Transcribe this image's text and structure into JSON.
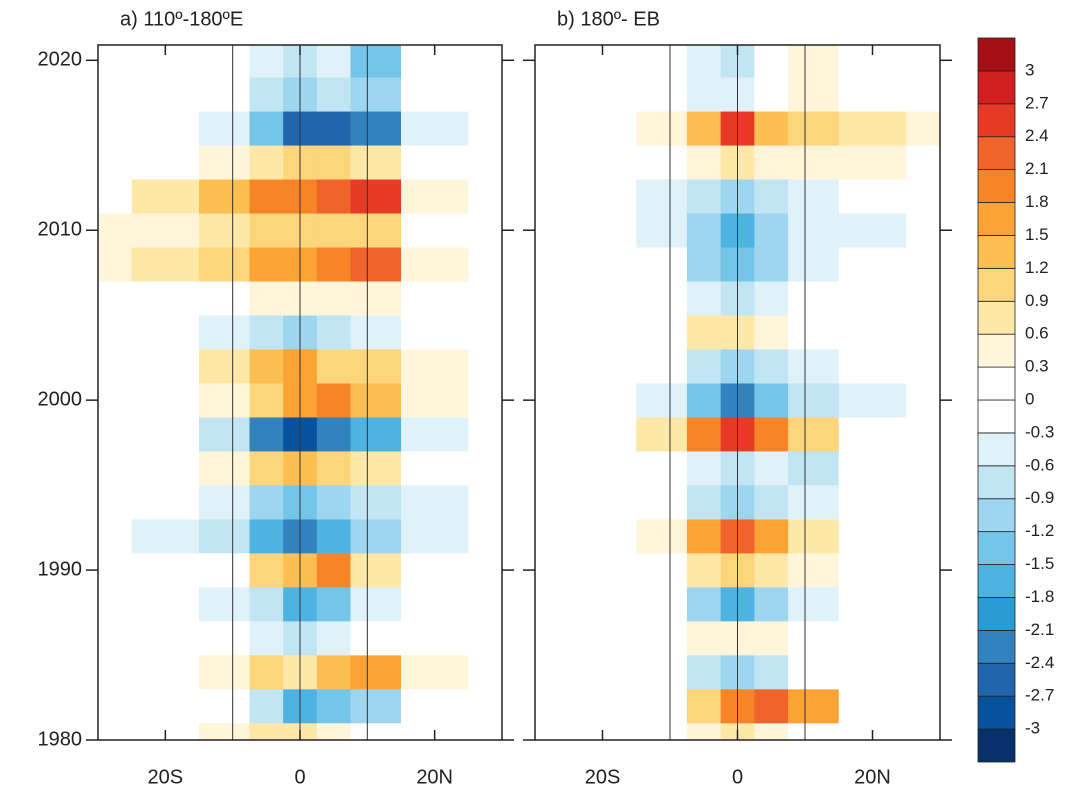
{
  "chart_data": {
    "type": "heatmap",
    "x": [
      -30,
      -20,
      -10,
      -5,
      0,
      5,
      10,
      20,
      30
    ],
    "y": [
      1980,
      1982,
      1984,
      1986,
      1988,
      1990,
      1992,
      1994,
      1996,
      1998,
      2000,
      2002,
      2004,
      2006,
      2008,
      2010,
      2012,
      2014,
      2016,
      2018,
      2020
    ],
    "xlim": [
      -30,
      30
    ],
    "ylim": [
      1980,
      2020.9
    ],
    "xticks": [
      {
        "value": -20,
        "label": "20S"
      },
      0,
      {
        "value": 20,
        "label": "20N"
      }
    ],
    "yticks": [
      1980,
      1990,
      2000,
      2010,
      2020
    ],
    "vlines": [
      -10,
      0,
      10
    ],
    "panels": [
      {
        "title": "a) 110º-180ºE",
        "z": [
          [
            0,
            0,
            0.3,
            0.6,
            0.6,
            0.3,
            0,
            0,
            0
          ],
          [
            0,
            0,
            0,
            -0.6,
            -1.5,
            -1.2,
            -0.9,
            0,
            0
          ],
          [
            0,
            0,
            0.3,
            0.9,
            0.6,
            1.2,
            1.5,
            0.3,
            0
          ],
          [
            0,
            0,
            0,
            -0.3,
            -0.6,
            -0.3,
            0,
            0,
            0
          ],
          [
            0,
            0,
            -0.3,
            -0.6,
            -1.5,
            -1.2,
            -0.3,
            0,
            0
          ],
          [
            0,
            0,
            0,
            0.9,
            1.2,
            1.8,
            0.6,
            0,
            0
          ],
          [
            0,
            -0.3,
            -0.6,
            -1.5,
            -2.1,
            -1.5,
            -0.9,
            -0.3,
            0
          ],
          [
            0,
            0,
            -0.3,
            -0.9,
            -1.2,
            -0.9,
            -0.6,
            -0.3,
            0
          ],
          [
            0,
            0,
            0.3,
            0.9,
            1.2,
            0.9,
            0.6,
            0,
            0
          ],
          [
            0,
            0,
            -0.6,
            -2.1,
            -2.7,
            -2.1,
            -1.5,
            -0.3,
            0
          ],
          [
            0,
            0,
            0.3,
            0.9,
            1.5,
            1.8,
            1.2,
            0.3,
            0
          ],
          [
            0,
            0,
            0.6,
            1.2,
            1.5,
            0.9,
            0.9,
            0.3,
            0
          ],
          [
            0,
            0,
            -0.3,
            -0.6,
            -0.9,
            -0.6,
            -0.3,
            0,
            0
          ],
          [
            0,
            0,
            0,
            0.3,
            0.3,
            0.3,
            0.3,
            0,
            0
          ],
          [
            0.3,
            0.6,
            0.9,
            1.5,
            1.5,
            1.8,
            2.1,
            0.3,
            0
          ],
          [
            0.3,
            0.3,
            0.6,
            0.9,
            0.9,
            0.9,
            0.9,
            0,
            0
          ],
          [
            0,
            0.6,
            1.2,
            1.8,
            1.8,
            2.1,
            2.4,
            0.3,
            0
          ],
          [
            0,
            0,
            0.3,
            0.6,
            0.9,
            0.9,
            0.6,
            0,
            0
          ],
          [
            0,
            0,
            -0.3,
            -1.2,
            -2.4,
            -2.4,
            -2.1,
            -0.3,
            0
          ],
          [
            0,
            0,
            0,
            -0.6,
            -0.9,
            -0.6,
            -0.9,
            0,
            0
          ],
          [
            0,
            0,
            0,
            -0.3,
            -0.6,
            -0.3,
            -1.2,
            0,
            0
          ]
        ]
      },
      {
        "title": "b) 180º- EB",
        "z": [
          [
            0,
            0,
            0,
            0.3,
            0.6,
            0.3,
            0,
            0,
            0
          ],
          [
            0,
            0,
            0,
            0.9,
            1.8,
            2.1,
            1.5,
            0,
            0
          ],
          [
            0,
            0,
            0,
            -0.6,
            -0.9,
            -0.6,
            0,
            0,
            0
          ],
          [
            0,
            0,
            0,
            0.3,
            0.3,
            0.3,
            0,
            0,
            0
          ],
          [
            0,
            0,
            0,
            -0.9,
            -1.5,
            -0.9,
            -0.3,
            0,
            0
          ],
          [
            0,
            0,
            0,
            0.6,
            0.9,
            0.6,
            0.3,
            0,
            0
          ],
          [
            0,
            0,
            0.3,
            1.5,
            2.1,
            1.5,
            0.6,
            0,
            0
          ],
          [
            0,
            0,
            0,
            -0.6,
            -0.9,
            -0.6,
            -0.3,
            0,
            0
          ],
          [
            0,
            0,
            0,
            -0.3,
            -0.6,
            -0.3,
            -0.6,
            0,
            0
          ],
          [
            0,
            0,
            0.6,
            1.8,
            2.4,
            1.8,
            0.9,
            0,
            0
          ],
          [
            0,
            0,
            -0.3,
            -1.2,
            -2.1,
            -1.2,
            -0.6,
            -0.3,
            0
          ],
          [
            0,
            0,
            0,
            -0.6,
            -0.9,
            -0.6,
            -0.3,
            0,
            0
          ],
          [
            0,
            0,
            0,
            0.6,
            0.6,
            0.3,
            0,
            0,
            0
          ],
          [
            0,
            0,
            0,
            -0.3,
            -0.6,
            -0.3,
            0,
            0,
            0
          ],
          [
            0,
            0,
            0,
            -0.9,
            -1.2,
            -0.9,
            -0.3,
            0,
            0
          ],
          [
            0,
            0,
            -0.3,
            -0.9,
            -1.5,
            -0.9,
            -0.3,
            -0.3,
            0
          ],
          [
            0,
            0,
            -0.3,
            -0.6,
            -0.9,
            -0.6,
            -0.3,
            0,
            0
          ],
          [
            0,
            0,
            0,
            0.3,
            0.6,
            0.3,
            0.3,
            0.3,
            0
          ],
          [
            0,
            0,
            0.3,
            1.2,
            2.4,
            1.2,
            0.9,
            0.6,
            0.3
          ],
          [
            0,
            0,
            0,
            -0.3,
            -0.3,
            0,
            0.3,
            0,
            0
          ],
          [
            0,
            0,
            0,
            -0.3,
            -0.6,
            0,
            0.3,
            0,
            0
          ]
        ]
      }
    ],
    "colorbar": {
      "levels": [
        -3,
        -2.7,
        -2.4,
        -2.1,
        -1.8,
        -1.5,
        -1.2,
        -0.9,
        -0.6,
        -0.3,
        0,
        0.3,
        0.6,
        0.9,
        1.2,
        1.5,
        1.8,
        2.1,
        2.4,
        2.7,
        3
      ],
      "colors": [
        "#08306b",
        "#08519c",
        "#2166ac",
        "#3182bd",
        "#2b9bd3",
        "#4eb3e0",
        "#74c5e8",
        "#9dd6ee",
        "#c2e5f3",
        "#dff1f9",
        "#ffffff",
        "#ffffff",
        "#fff5da",
        "#fee8a8",
        "#fdd57a",
        "#fdbf52",
        "#fca336",
        "#f88428",
        "#f0632a",
        "#e53b24",
        "#d01f1f",
        "#a50f15"
      ]
    }
  }
}
